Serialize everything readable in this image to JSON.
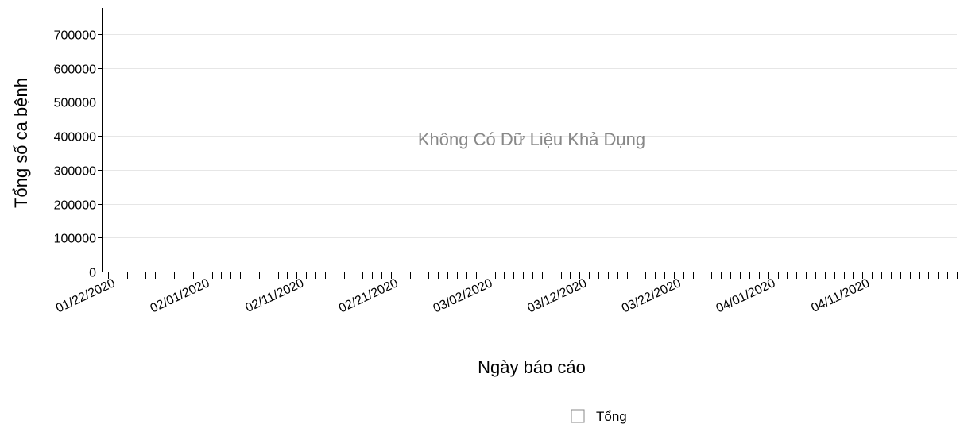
{
  "chart_data": {
    "type": "line",
    "title": "",
    "ylabel": "Tổng số ca bệnh",
    "xlabel": "Ngày báo cáo",
    "ylim": [
      0,
      700000
    ],
    "yticks": [
      0,
      100000,
      200000,
      300000,
      400000,
      500000,
      600000,
      700000
    ],
    "x_start": "01/22/2020",
    "x_end": "04/21/2020",
    "x_tick_labels": [
      "01/22/2020",
      "02/01/2020",
      "02/11/2020",
      "02/21/2020",
      "03/02/2020",
      "03/12/2020",
      "03/22/2020",
      "04/01/2020",
      "04/11/2020"
    ],
    "series": [
      {
        "name": "Tổng",
        "values": []
      }
    ],
    "no_data_message": "Không Có Dữ Liệu Khả Dụng",
    "grid": true,
    "legend_position": "bottom"
  }
}
